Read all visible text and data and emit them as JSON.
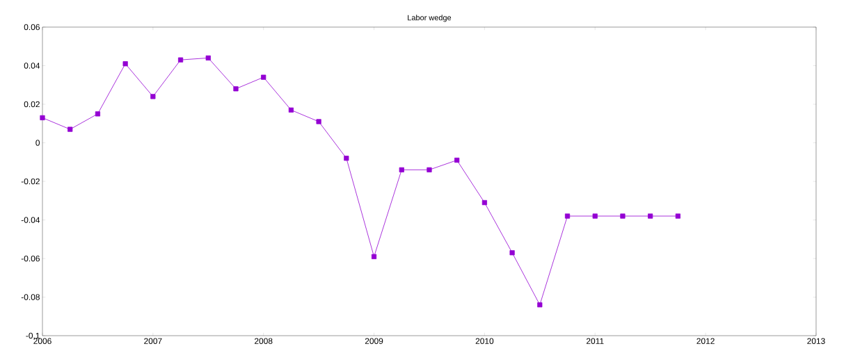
{
  "chart_data": {
    "type": "line",
    "title": "Labor wedge",
    "x": [
      2006.0,
      2006.25,
      2006.5,
      2006.75,
      2007.0,
      2007.25,
      2007.5,
      2007.75,
      2008.0,
      2008.25,
      2008.5,
      2008.75,
      2009.0,
      2009.25,
      2009.5,
      2009.75,
      2010.0,
      2010.25,
      2010.5,
      2010.75,
      2011.0,
      2011.25,
      2011.5,
      2011.75
    ],
    "series": [
      {
        "color": "#9400d3",
        "values": [
          0.013,
          0.007,
          0.015,
          0.041,
          0.024,
          0.043,
          0.044,
          0.028,
          0.034,
          0.017,
          0.011,
          -0.008,
          -0.059,
          -0.014,
          -0.014,
          -0.009,
          -0.031,
          -0.057,
          -0.084,
          -0.038,
          -0.038,
          -0.038,
          -0.038,
          -0.038
        ]
      }
    ],
    "xlim": [
      2006,
      2013
    ],
    "xticks": [
      2006,
      2007,
      2008,
      2009,
      2010,
      2011,
      2012,
      2013
    ],
    "ylim": [
      -0.1,
      0.06
    ],
    "yticks": [
      -0.1,
      -0.08,
      -0.06,
      -0.04,
      -0.02,
      0,
      0.02,
      0.04,
      0.06
    ],
    "marker": "square",
    "line_style": "solid"
  }
}
